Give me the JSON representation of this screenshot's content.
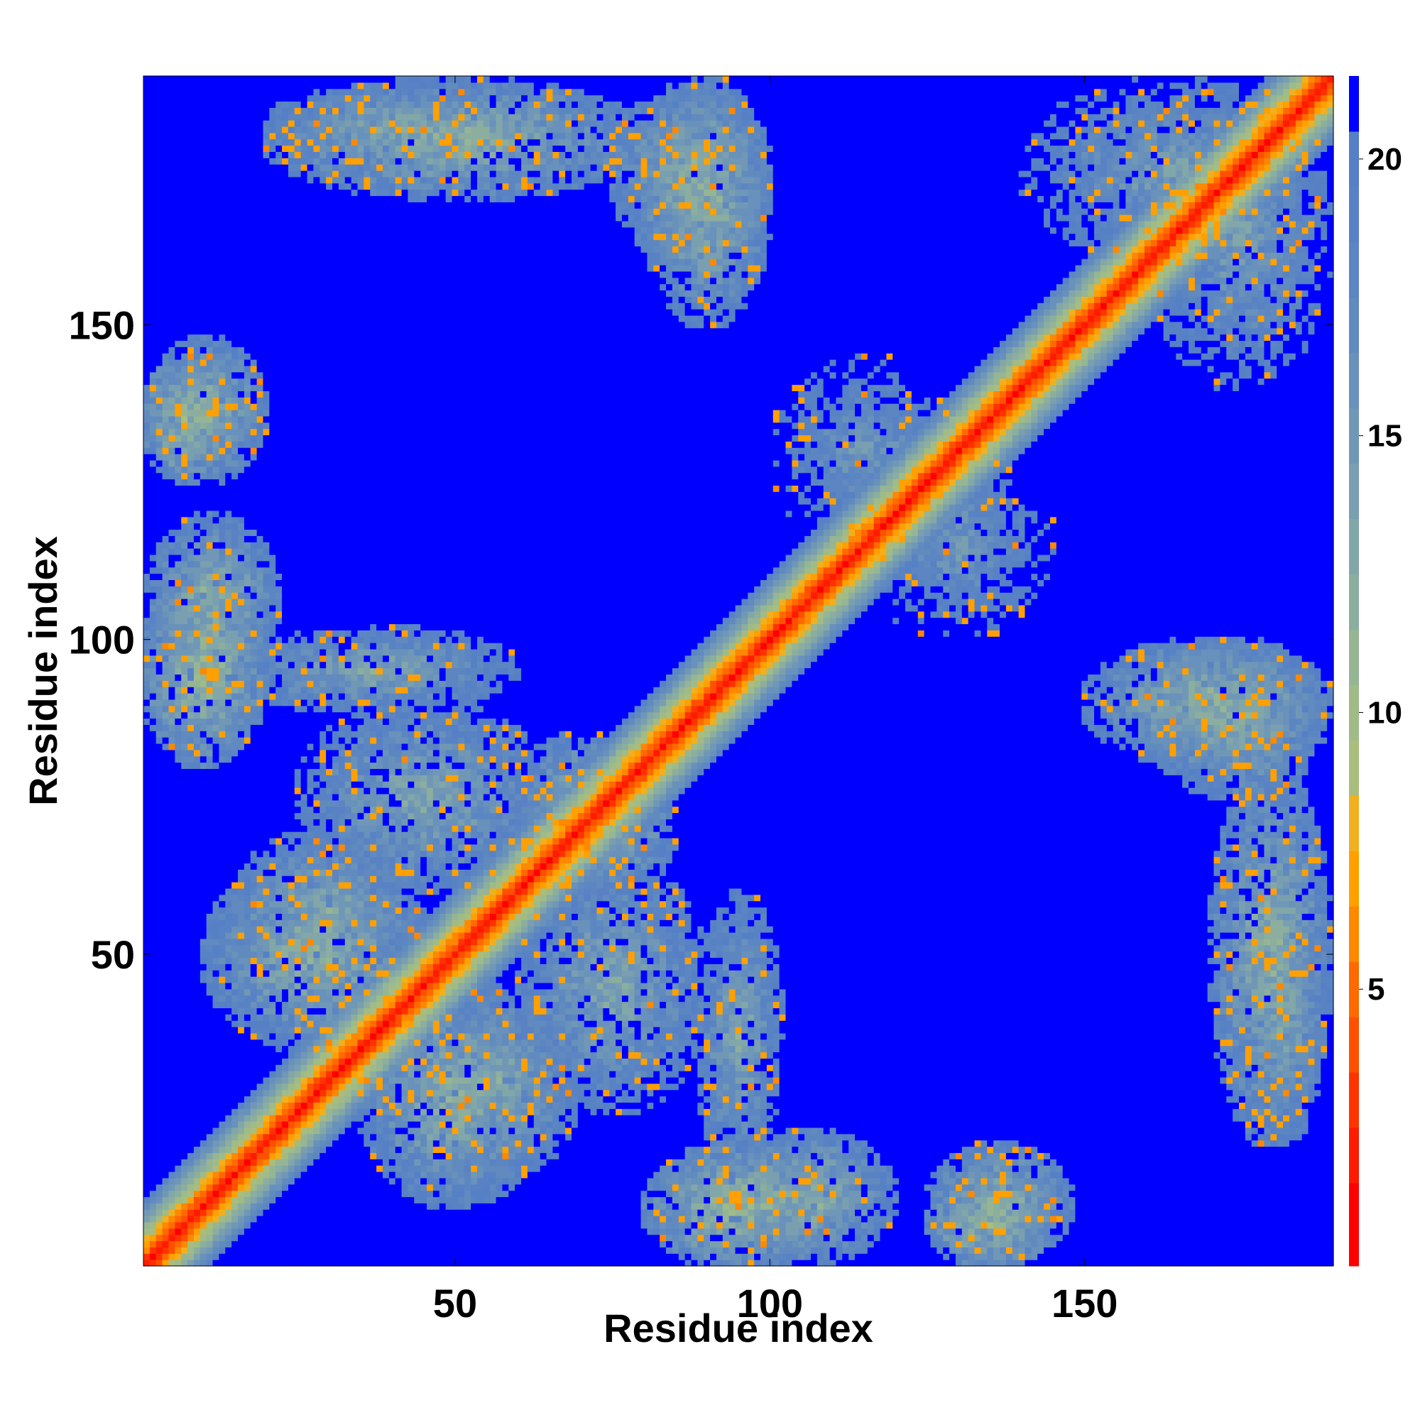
{
  "chart_data": {
    "type": "heatmap",
    "title": "",
    "xlabel": "Residue index",
    "ylabel": "Residue index",
    "n_residues": 189,
    "xlim": [
      1,
      189
    ],
    "ylim": [
      1,
      189
    ],
    "x_ticks": [
      50,
      100,
      150
    ],
    "y_ticks": [
      50,
      100,
      150
    ],
    "colorbar": {
      "range": [
        0,
        21.5
      ],
      "ticks": [
        5,
        10,
        15,
        20
      ],
      "levels": [
        {
          "max": 1.5,
          "color": "#ff0000"
        },
        {
          "max": 2.5,
          "color": "#ff1a00"
        },
        {
          "max": 3.5,
          "color": "#ff3300"
        },
        {
          "max": 4.5,
          "color": "#ff5000"
        },
        {
          "max": 5.5,
          "color": "#ff6a00"
        },
        {
          "max": 6.5,
          "color": "#ff8800"
        },
        {
          "max": 7.5,
          "color": "#ffa000"
        },
        {
          "max": 8.5,
          "color": "#f0b020"
        },
        {
          "max": 9.5,
          "color": "#a9bd7e"
        },
        {
          "max": 10.5,
          "color": "#9fbb88"
        },
        {
          "max": 11.5,
          "color": "#96b595"
        },
        {
          "max": 12.5,
          "color": "#8cae9f"
        },
        {
          "max": 13.5,
          "color": "#82a7a8"
        },
        {
          "max": 14.5,
          "color": "#799fb0"
        },
        {
          "max": 15.5,
          "color": "#7098b6"
        },
        {
          "max": 16.5,
          "color": "#6891bb"
        },
        {
          "max": 17.5,
          "color": "#618abf"
        },
        {
          "max": 18.5,
          "color": "#5c86c2"
        },
        {
          "max": 19.5,
          "color": "#5882c4"
        },
        {
          "max": 20.5,
          "color": "#5580c6"
        },
        {
          "max": 99,
          "color": "#0000ff"
        }
      ]
    },
    "contact_regions": [
      {
        "x": [
          1,
          22
        ],
        "y": [
          92,
          120
        ],
        "min": 10
      },
      {
        "x": [
          1,
          20
        ],
        "y": [
          125,
          148
        ],
        "min": 10
      },
      {
        "x": [
          15,
          60
        ],
        "y": [
          88,
          102
        ],
        "min": 11
      },
      {
        "x": [
          25,
          65
        ],
        "y": [
          60,
          90
        ],
        "min": 11
      },
      {
        "x": [
          10,
          45
        ],
        "y": [
          35,
          65
        ],
        "min": 10
      },
      {
        "x": [
          45,
          70
        ],
        "y": [
          15,
          45
        ],
        "min": 11
      },
      {
        "x": [
          60,
          85
        ],
        "y": [
          60,
          80
        ],
        "min": 10
      },
      {
        "x": [
          80,
          110
        ],
        "y": [
          0,
          20
        ],
        "min": 9
      },
      {
        "x": [
          125,
          145
        ],
        "y": [
          0,
          15
        ],
        "min": 9
      },
      {
        "x": [
          20,
          60
        ],
        "y": [
          175,
          188
        ],
        "min": 11
      },
      {
        "x": [
          75,
          100
        ],
        "y": [
          160,
          188
        ],
        "min": 10
      },
      {
        "x": [
          150,
          189
        ],
        "y": [
          80,
          100
        ],
        "min": 10
      },
      {
        "x": [
          170,
          189
        ],
        "y": [
          20,
          80
        ],
        "min": 10
      },
      {
        "x": [
          160,
          189
        ],
        "y": [
          140,
          188
        ],
        "min": 12
      },
      {
        "x": [
          100,
          130
        ],
        "y": [
          115,
          145
        ],
        "min": 13
      }
    ]
  }
}
